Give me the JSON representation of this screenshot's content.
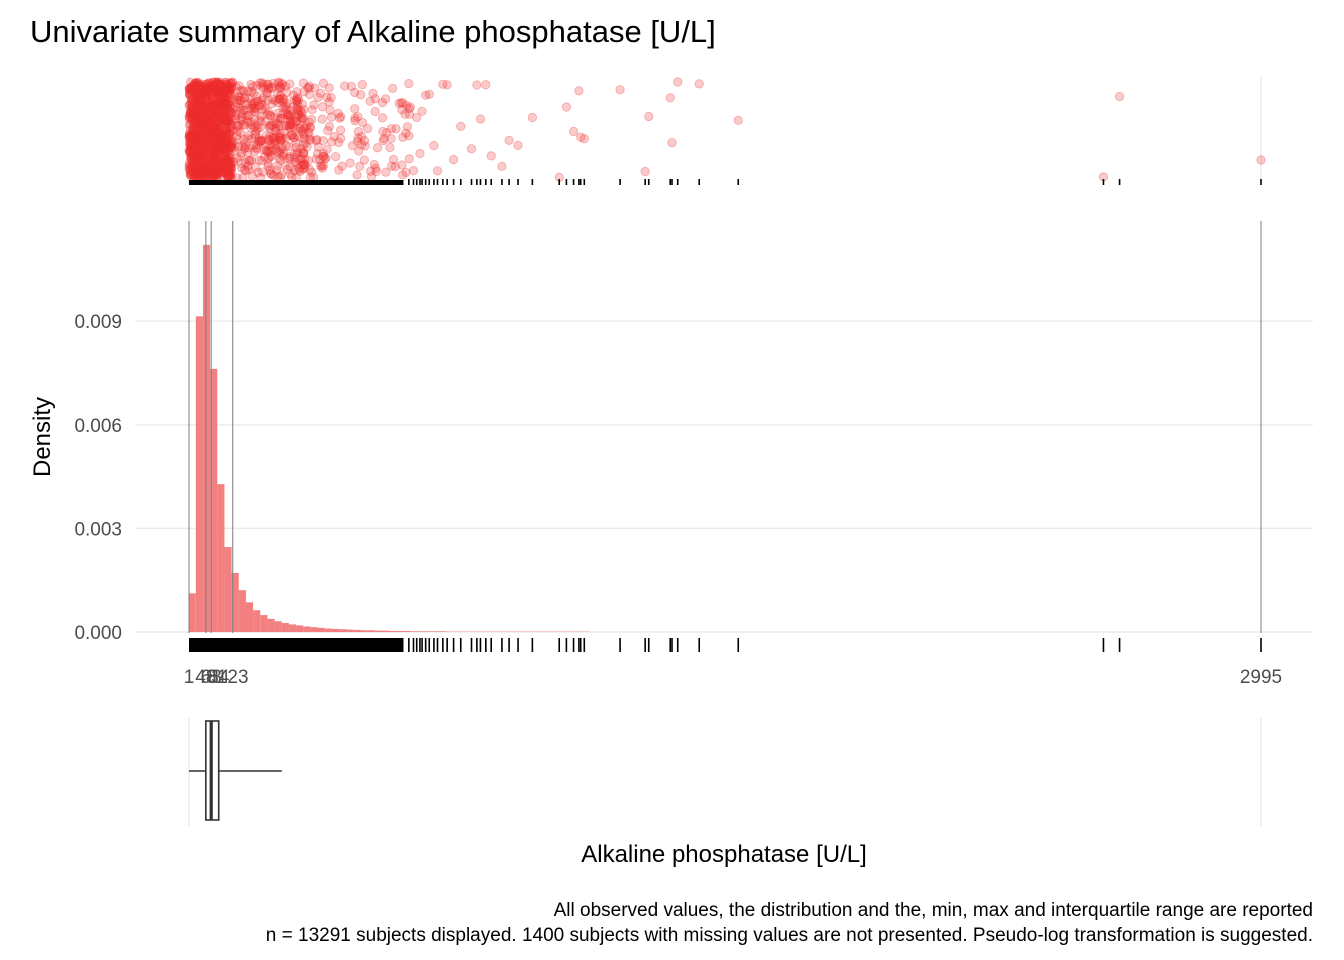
{
  "chart_data": {
    "type": "histogram",
    "title": "Univariate summary of Alkaline phosphatase [U/L]",
    "xlabel": "Alkaline phosphatase [U/L]",
    "ylabel": "Density",
    "xlim": [
      0,
      3020
    ],
    "ylim": [
      0,
      0.0119
    ],
    "y_ticks": [
      0,
      0.003,
      0.006,
      0.009
    ],
    "y_tick_labels": [
      "0.000",
      "0.003",
      "0.006",
      "0.009"
    ],
    "x_ticks": [
      {
        "value": 1,
        "label": "1"
      },
      {
        "value": 48,
        "label": "48"
      },
      {
        "value": 63,
        "label": "63"
      },
      {
        "value": 84,
        "label": "84"
      },
      {
        "value": 123,
        "label": "123"
      },
      {
        "value": 2995,
        "label": "2995"
      }
    ],
    "summary": {
      "min": 1,
      "q1": 48,
      "median": 63,
      "q3": 84,
      "whisker_high": 123,
      "max": 2995
    },
    "histogram": {
      "bin_start": 0,
      "bin_width": 20,
      "densities": [
        0.00112,
        0.00914,
        0.01121,
        0.00762,
        0.00428,
        0.00246,
        0.00171,
        0.00121,
        0.00086,
        0.00063,
        0.00049,
        0.00038,
        0.00031,
        0.00026,
        0.00022,
        0.00019,
        0.00016,
        0.00014,
        0.00012,
        0.0001,
        9e-05,
        8e-05,
        7e-05,
        6e-05,
        5e-05,
        5e-05,
        4e-05,
        4e-05,
        3e-05,
        3e-05,
        3e-05,
        2e-05,
        2e-05,
        2e-05,
        2e-05,
        2e-05,
        1e-05,
        1e-05,
        1e-05,
        1e-05,
        1e-05,
        1e-05,
        1e-05,
        1e-05,
        1e-05,
        1e-05,
        1e-05,
        1e-05,
        1e-05,
        1e-05,
        1e-05,
        1e-05,
        1e-05,
        1e-05,
        1e-05,
        1e-05
      ]
    },
    "rug_outliers": [
      615,
      628,
      637,
      646,
      652,
      662,
      672,
      685,
      695,
      710,
      722,
      740,
      760,
      790,
      805,
      815,
      830,
      845,
      875,
      895,
      920,
      960,
      1035,
      1055,
      1075,
      1090,
      1095,
      1105,
      1205,
      1275,
      1285,
      1345,
      1350,
      1366,
      1426,
      1535,
      2555,
      2600,
      2995
    ],
    "dense_rug_max": 600,
    "point_color": "#ee2d2d",
    "bar_color": "#f28080",
    "caption_lines": [
      "All observed values, the distribution and the, min, max and interquartile range are reported",
      "n = 13291 subjects displayed. 1400 subjects with missing values are not presented. Pseudo-log transformation is suggested."
    ]
  }
}
